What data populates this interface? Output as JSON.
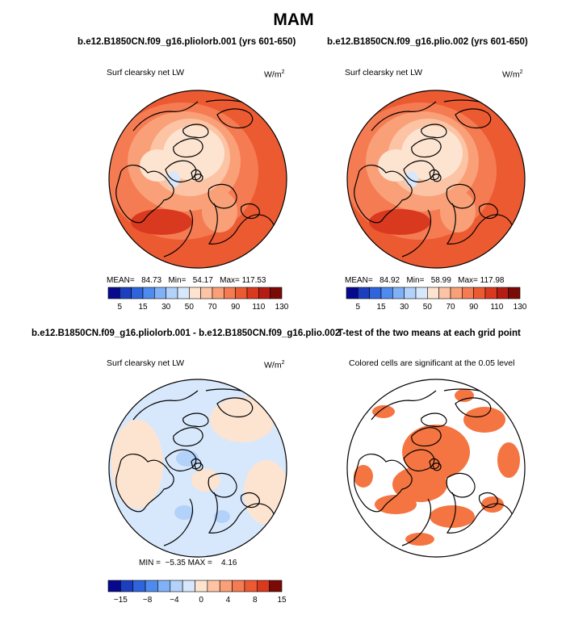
{
  "title": "MAM",
  "panels": [
    {
      "title": "b.e12.B1850CN.f09_g16.pliolorb.001 (yrs 601-650)",
      "subtitle": "Surf clearsky net LW",
      "units": "W/m",
      "units_sup": "2",
      "stats": {
        "mean_label": "MEAN=",
        "mean": "84.73",
        "min_label": "Min=",
        "min": "54.17",
        "max_label": "Max=",
        "max": "117.53"
      }
    },
    {
      "title": "b.e12.B1850CN.f09_g16.plio.002 (yrs 601-650)",
      "subtitle": "Surf clearsky net LW",
      "units": "W/m",
      "units_sup": "2",
      "stats": {
        "mean_label": "MEAN=",
        "mean": "84.92",
        "min_label": "Min=",
        "min": "58.99",
        "max_label": "Max=",
        "max": "117.98"
      }
    },
    {
      "title": "b.e12.B1850CN.f09_g16.pliolorb.001 - b.e12.B1850CN.f09_g16.plio.002",
      "subtitle": "Surf clearsky net LW",
      "units": "W/m",
      "units_sup": "2",
      "stats": {
        "min_label": "MIN =",
        "min": "−5.35",
        "max_label": "MAX =",
        "max": "4.16"
      }
    },
    {
      "title": "T-test of the two means at each grid point",
      "subtitle": "Colored cells are significant at the 0.05 level"
    }
  ],
  "colorbars": {
    "absolute": {
      "labels": [
        "5",
        "15",
        "30",
        "50",
        "70",
        "90",
        "110",
        "130"
      ],
      "colors": [
        "#08088f",
        "#1c3fbf",
        "#2f64dc",
        "#4f8bee",
        "#80b1f6",
        "#b2d2fa",
        "#d7e8fc",
        "#fde4d1",
        "#fcc4a4",
        "#f9a078",
        "#f57b52",
        "#ec5a32",
        "#d9391e",
        "#b51d12",
        "#7a0a05"
      ]
    },
    "difference": {
      "labels": [
        "−15",
        "−8",
        "−4",
        "0",
        "4",
        "8",
        "15"
      ],
      "colors": [
        "#08088f",
        "#1c3fbf",
        "#2f64dc",
        "#4f8bee",
        "#80b1f6",
        "#b2d2fa",
        "#d7e8fc",
        "#fde4d1",
        "#fcc4a4",
        "#f9a078",
        "#f57b52",
        "#ec5a32",
        "#d9391e",
        "#7a0a05"
      ]
    }
  },
  "chart_data": [
    {
      "type": "heatmap",
      "projection": "north-polar-stereographic",
      "variable": "Surf clearsky net LW",
      "units": "W/m2",
      "mean": 84.73,
      "min": 54.17,
      "max": 117.53,
      "levels": [
        5,
        15,
        30,
        50,
        70,
        90,
        110,
        130
      ]
    },
    {
      "type": "heatmap",
      "projection": "north-polar-stereographic",
      "variable": "Surf clearsky net LW",
      "units": "W/m2",
      "mean": 84.92,
      "min": 58.99,
      "max": 117.98,
      "levels": [
        5,
        15,
        30,
        50,
        70,
        90,
        110,
        130
      ]
    },
    {
      "type": "heatmap",
      "projection": "north-polar-stereographic",
      "variable": "Surf clearsky net LW difference",
      "units": "W/m2",
      "min": -5.35,
      "max": 4.16,
      "levels": [
        -15,
        -8,
        -4,
        0,
        4,
        8,
        15
      ]
    },
    {
      "type": "heatmap",
      "projection": "north-polar-stereographic",
      "variable": "T-test significance",
      "significance_level": 0.05,
      "significant_color": "#f47541"
    }
  ]
}
